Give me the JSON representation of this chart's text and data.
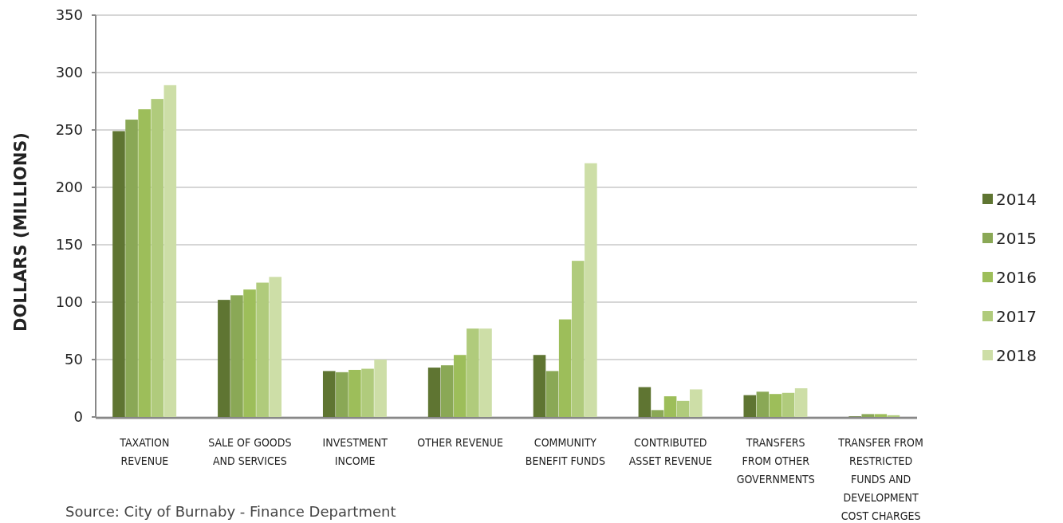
{
  "chart_data": {
    "type": "bar",
    "ylabel": "DOLLARS (MILLIONS)",
    "categories": [
      "TAXATION REVENUE",
      "SALE OF GOODS AND SERVICES",
      "INVESTMENT INCOME",
      "OTHER REVENUE",
      "COMMUNITY BENEFIT FUNDS",
      "CONTRIBUTED ASSET REVENUE",
      "TRANSFERS FROM OTHER GOVERNMENTS",
      "TRANSFER FROM RESTRICTED FUNDS AND DEVELOPMENT COST CHARGES"
    ],
    "series": [
      {
        "name": "2014",
        "color": "#5f7532",
        "values": [
          249,
          102,
          40,
          43,
          54,
          26,
          19,
          0.5
        ]
      },
      {
        "name": "2015",
        "color": "#8aa856",
        "values": [
          259,
          106,
          39,
          45,
          40,
          6,
          22,
          2.5
        ]
      },
      {
        "name": "2016",
        "color": "#9dbe5a",
        "values": [
          268,
          111,
          41,
          54,
          85,
          18,
          20,
          2.5
        ]
      },
      {
        "name": "2017",
        "color": "#b0cb7c",
        "values": [
          277,
          117,
          42,
          77,
          136,
          14,
          21,
          1.5
        ]
      },
      {
        "name": "2018",
        "color": "#cddea7",
        "values": [
          289,
          122,
          50,
          77,
          221,
          24,
          25,
          0
        ]
      }
    ],
    "ylim": [
      0,
      350
    ],
    "yticks": [
      0,
      50,
      100,
      150,
      200,
      250,
      300,
      350
    ],
    "grid": "y",
    "legend": "right",
    "annotations": [
      "Source: City of Burnaby - Finance Department"
    ]
  }
}
